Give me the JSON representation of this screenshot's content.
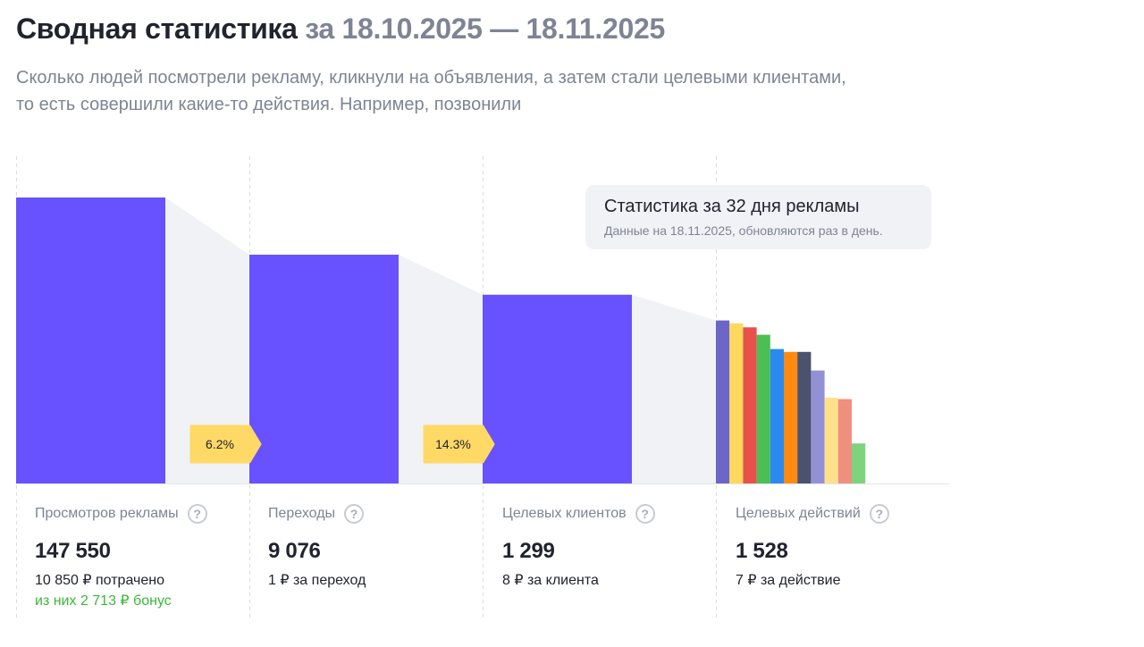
{
  "header": {
    "title": "Сводная статистика",
    "period": "за 18.10.2025 — 18.11.2025"
  },
  "description": {
    "line1": "Сколько людей посмотрели рекламу, кликнули на объявления, а затем стали целевыми клиентами,",
    "line2": "то есть совершили какие-то действия. Например, позвонили"
  },
  "tooltip": {
    "title": "Статистика за 32 дня рекламы",
    "note": "Данные на 18.11.2025, обновляются раз в день."
  },
  "colors": {
    "bar": "#6852ff",
    "connector": "#f1f2f5",
    "badge": "#ffd966",
    "divider": "#d9dbe1",
    "bonus": "#3ab83a",
    "action_bars": [
      "#6c66c8",
      "#ffd95e",
      "#e8514a",
      "#4cbe55",
      "#2a8af0",
      "#ff8a0f",
      "#4a526d",
      "#9291d6",
      "#ffe08a",
      "#ef8f80",
      "#7ed47e"
    ]
  },
  "stats": [
    {
      "label": "Просмотров рекламы",
      "value": "147 550",
      "sub": "10 850 ₽ потрачено",
      "bonus": "из них 2 713 ₽ бонус"
    },
    {
      "label": "Переходы",
      "value": "9 076",
      "sub": "1 ₽ за переход"
    },
    {
      "label": "Целевых клиентов",
      "value": "1 299",
      "sub": "8 ₽ за клиента"
    },
    {
      "label": "Целевых действий",
      "value": "1 528",
      "sub": "7 ₽ за действие"
    }
  ],
  "help_icon": "question-circle-icon",
  "chart_data": {
    "type": "bar",
    "categories": [
      "Просмотров рекламы",
      "Переходы",
      "Целевых клиентов",
      "Целевых действий"
    ],
    "values": [
      147550,
      9076,
      1299,
      1528
    ],
    "conversion_badges": [
      "6.2%",
      "14.3%"
    ],
    "relative_heights": [
      1.0,
      0.8,
      0.66,
      0.57
    ],
    "action_breakdown_relative_heights": [
      0.57,
      0.56,
      0.546,
      0.52,
      0.47,
      0.46,
      0.46,
      0.395,
      0.3,
      0.295,
      0.14
    ]
  }
}
